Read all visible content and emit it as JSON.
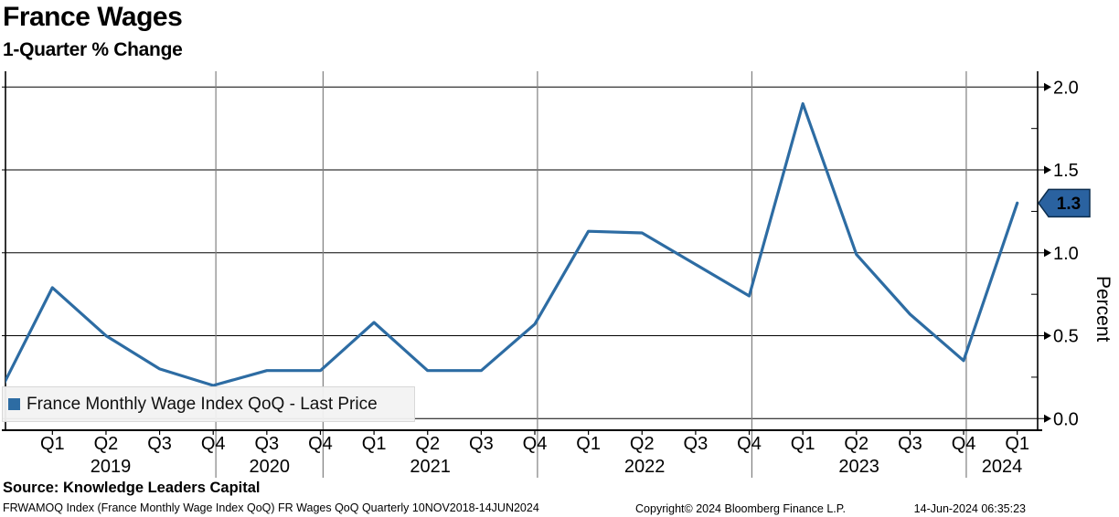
{
  "header": {
    "title": "France Wages",
    "subtitle": "1-Quarter % Change"
  },
  "chart_data": {
    "type": "line",
    "title": "France Wages",
    "subtitle": "1-Quarter % Change",
    "ylabel": "Percent",
    "ylim": [
      0.0,
      2.0
    ],
    "grid": "horizontal-major",
    "line_color": "#2d6ca3",
    "y_axis": {
      "side": "right",
      "ticks": [
        {
          "value": 2.0,
          "label": "2.0"
        },
        {
          "value": 1.5,
          "label": "1.5"
        },
        {
          "value": 1.0,
          "label": "1.0"
        },
        {
          "value": 0.5,
          "label": "0.5"
        },
        {
          "value": 0.0,
          "label": "0.0"
        }
      ],
      "minor_tick_step": 0.25
    },
    "x_axis": {
      "year_labels": [
        "2019",
        "2020",
        "2021",
        "2022",
        "2023",
        "2024"
      ],
      "note": "quarterly ticks; 2020 Q1 and Q2 not plotted"
    },
    "legend": {
      "label": "France Monthly Wage Index QoQ - Last Price",
      "position": "bottom-left",
      "swatch_color": "#2d6ca3"
    },
    "last_price": {
      "value": 1.3,
      "label": "1.3",
      "badge_color": "#2a62a0",
      "badge_border": "#0c2d4d",
      "text_color": "#ffffff"
    },
    "series": [
      {
        "name": "France Monthly Wage Index QoQ - Last Price",
        "points": [
          {
            "period": "2018 Q4",
            "value": 0.15,
            "clipped": true
          },
          {
            "period": "2019 Q1",
            "value": 0.79
          },
          {
            "period": "2019 Q2",
            "value": 0.5
          },
          {
            "period": "2019 Q3",
            "value": 0.3
          },
          {
            "period": "2019 Q4",
            "value": 0.2
          },
          {
            "period": "2020 Q3",
            "value": 0.29
          },
          {
            "period": "2020 Q4",
            "value": 0.29
          },
          {
            "period": "2021 Q1",
            "value": 0.58
          },
          {
            "period": "2021 Q2",
            "value": 0.29
          },
          {
            "period": "2021 Q3",
            "value": 0.29
          },
          {
            "period": "2021 Q4",
            "value": 0.57
          },
          {
            "period": "2022 Q1",
            "value": 1.13
          },
          {
            "period": "2022 Q2",
            "value": 1.12
          },
          {
            "period": "2022 Q3",
            "value": 0.93
          },
          {
            "period": "2022 Q4",
            "value": 0.74
          },
          {
            "period": "2023 Q1",
            "value": 1.9
          },
          {
            "period": "2023 Q2",
            "value": 0.99
          },
          {
            "period": "2023 Q3",
            "value": 0.63
          },
          {
            "period": "2023 Q4",
            "value": 0.35
          },
          {
            "period": "2024 Q1",
            "value": 1.3
          }
        ]
      }
    ]
  },
  "footer": {
    "source": "Source: Knowledge Leaders Capital",
    "description": "FRWAMOQ Index (France Monthly Wage Index QoQ) FR Wages QoQ  Quarterly 10NOV2018-14JUN2024",
    "copyright": "Copyright© 2024 Bloomberg Finance L.P.",
    "timestamp": "14-Jun-2024 06:35:23"
  }
}
